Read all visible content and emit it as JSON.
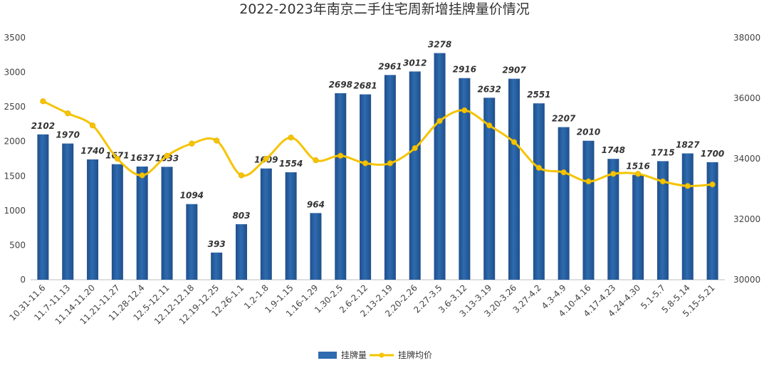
{
  "chart_data": {
    "type": "bar",
    "title": "2022-2023年南京二手住宅周新增挂牌量价情况",
    "categories": [
      "10.31-11.6",
      "11.7-11.13",
      "11.14-11.20",
      "11.21-11.27",
      "11.28-12.4",
      "12.5-12.11",
      "12.12-12.18",
      "12.19-12.25",
      "12.26-1.1",
      "1.2-1.8",
      "1.9-1.15",
      "1.16-1.29",
      "1.30-2.5",
      "2.6-2.12",
      "2.13-2.19",
      "2.20-2.26",
      "2.27-3.5",
      "3.6-3.12",
      "3.13-3.19",
      "3.20-3.26",
      "3.27-4.2",
      "4.3-4.9",
      "4.10-4.16",
      "4.17-4.23",
      "4.24-4.30",
      "5.1-5.7",
      "5.8-5.14",
      "5.15-5.21"
    ],
    "series": [
      {
        "name": "挂牌量",
        "type": "bar",
        "axis": "left",
        "color": "#2e6bb0",
        "values": [
          2102,
          1970,
          1740,
          1671,
          1637,
          1633,
          1094,
          393,
          803,
          1609,
          1554,
          964,
          2698,
          2681,
          2961,
          3012,
          3278,
          2916,
          2632,
          2907,
          2551,
          2207,
          2010,
          1748,
          1516,
          1715,
          1827,
          1700
        ]
      },
      {
        "name": "挂牌均价",
        "type": "line",
        "axis": "right",
        "color": "#f5c400",
        "values": [
          35900,
          35500,
          35100,
          34000,
          33450,
          34100,
          34500,
          34600,
          33450,
          34000,
          34700,
          33950,
          34100,
          33850,
          33850,
          34350,
          35250,
          35600,
          35100,
          34550,
          33700,
          33550,
          33250,
          33500,
          33500,
          33250,
          33100,
          33150
        ]
      }
    ],
    "y_left": {
      "min": 0,
      "max": 3500,
      "ticks": [
        0,
        500,
        1000,
        1500,
        2000,
        2500,
        3000,
        3500
      ]
    },
    "y_right": {
      "min": 30000,
      "max": 38000,
      "ticks": [
        30000,
        32000,
        34000,
        36000,
        38000
      ]
    },
    "grid": false,
    "legend_position": "bottom"
  }
}
